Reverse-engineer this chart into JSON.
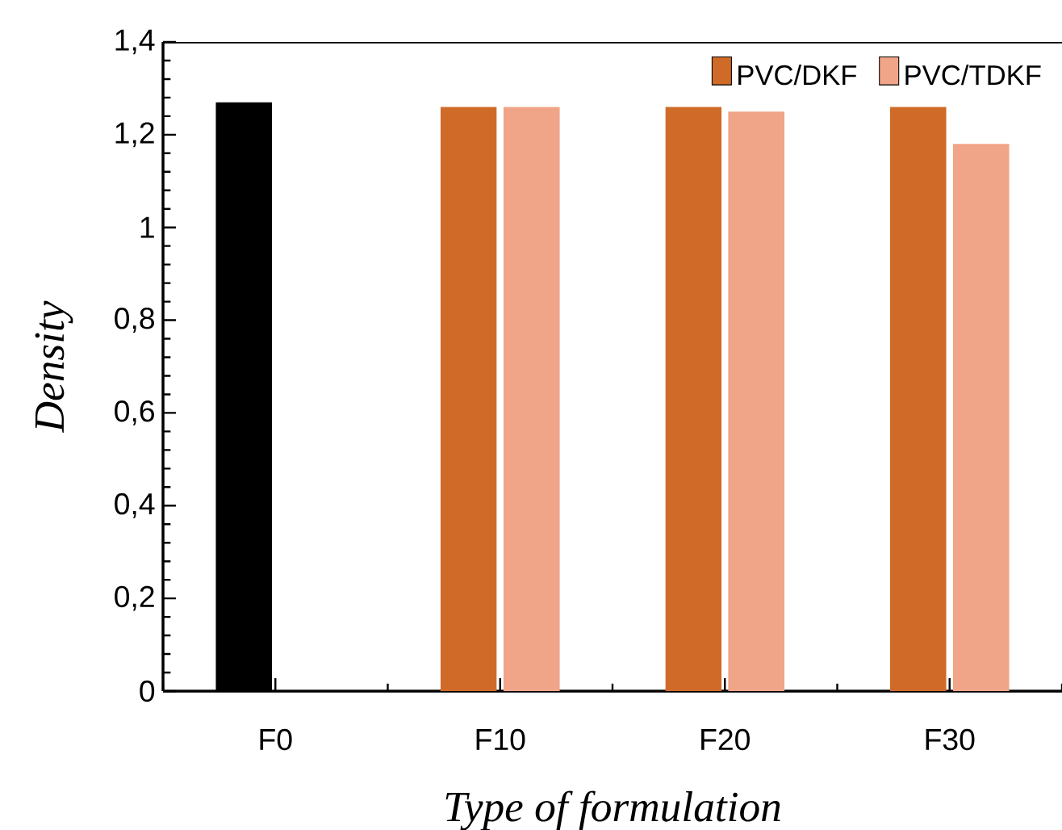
{
  "chart_data": {
    "type": "bar",
    "xlabel": "Type of formulation",
    "ylabel": "Density",
    "categories": [
      "F0",
      "F10",
      "F20",
      "F30"
    ],
    "series": [
      {
        "name": "PVC/DKF",
        "color": "#d06a28",
        "colors": [
          "#000000",
          "#d06a28",
          "#d06a28",
          "#d06a28"
        ],
        "values": [
          1.27,
          1.26,
          1.26,
          1.26
        ]
      },
      {
        "name": "PVC/TDKF",
        "color": "#f0a488",
        "values": [
          null,
          1.26,
          1.25,
          1.18
        ]
      }
    ],
    "ylim": [
      0,
      1.4
    ],
    "yticks": [
      0,
      {
        "value": 0.2,
        "label": "0,2"
      },
      {
        "value": 0.4,
        "label": "0,4"
      },
      {
        "value": 0.6,
        "label": "0,6"
      },
      {
        "value": 0.8,
        "label": "0,8"
      },
      1,
      {
        "value": 1.2,
        "label": "1,2"
      },
      {
        "value": 1.4,
        "label": "1,4"
      }
    ],
    "legend": "top right",
    "grid": false
  }
}
